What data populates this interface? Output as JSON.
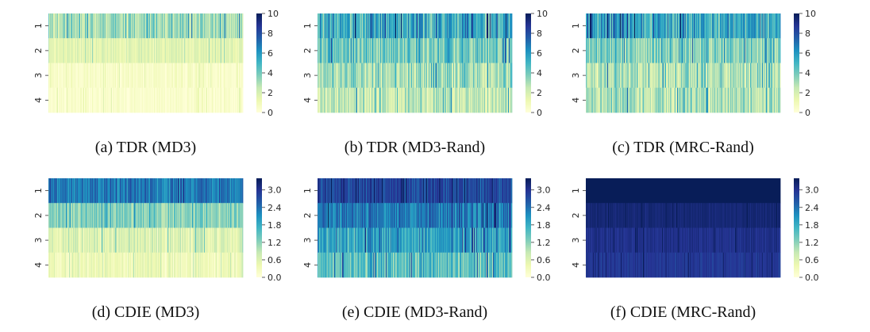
{
  "colormap": {
    "name": "YlGnBu",
    "stops": [
      "#ffffd9",
      "#edf8b1",
      "#c7e9b4",
      "#7fcdbb",
      "#41b6c4",
      "#1d91c0",
      "#225ea8",
      "#253494",
      "#081d58"
    ]
  },
  "row_labels": [
    "1",
    "2",
    "3",
    "4"
  ],
  "chart_data": [
    {
      "type": "heatmap",
      "caption": "(a) TDR (MD3)",
      "rows": [
        "1",
        "2",
        "3",
        "4"
      ],
      "vmin": 0,
      "vmax": 10,
      "colorbar_ticks": [
        "0",
        "2",
        "4",
        "6",
        "8",
        "10"
      ],
      "row_mean_values": [
        3.0,
        1.6,
        0.5,
        0.4
      ],
      "row_variation": [
        1.8,
        0.9,
        0.6,
        0.6
      ]
    },
    {
      "type": "heatmap",
      "caption": "(b) TDR (MD3-Rand)",
      "rows": [
        "1",
        "2",
        "3",
        "4"
      ],
      "vmin": 0,
      "vmax": 10,
      "colorbar_ticks": [
        "0",
        "2",
        "4",
        "6",
        "8",
        "10"
      ],
      "row_mean_values": [
        5.2,
        4.0,
        3.0,
        2.4
      ],
      "row_variation": [
        2.6,
        2.2,
        2.2,
        2.0
      ]
    },
    {
      "type": "heatmap",
      "caption": "(c) TDR (MRC-Rand)",
      "rows": [
        "1",
        "2",
        "3",
        "4"
      ],
      "vmin": 0,
      "vmax": 10,
      "colorbar_ticks": [
        "0",
        "2",
        "4",
        "6",
        "8",
        "10"
      ],
      "row_mean_values": [
        5.4,
        3.6,
        2.8,
        2.8
      ],
      "row_variation": [
        2.6,
        2.0,
        2.0,
        2.0
      ]
    },
    {
      "type": "heatmap",
      "caption": "(d) CDIE (MD3)",
      "rows": [
        "1",
        "2",
        "3",
        "4"
      ],
      "vmin": 0.0,
      "vmax": 3.4,
      "colorbar_ticks": [
        "0.0",
        "0.6",
        "1.2",
        "1.8",
        "2.4",
        "3.0"
      ],
      "row_mean_values": [
        2.3,
        1.2,
        0.6,
        0.35
      ],
      "row_variation": [
        0.5,
        0.5,
        0.45,
        0.35
      ]
    },
    {
      "type": "heatmap",
      "caption": "(e) CDIE (MD3-Rand)",
      "rows": [
        "1",
        "2",
        "3",
        "4"
      ],
      "vmin": 0.0,
      "vmax": 3.4,
      "colorbar_ticks": [
        "0.0",
        "0.6",
        "1.2",
        "1.8",
        "2.4",
        "3.0"
      ],
      "row_mean_values": [
        2.8,
        2.3,
        1.9,
        1.5
      ],
      "row_variation": [
        0.5,
        0.6,
        0.7,
        0.7
      ]
    },
    {
      "type": "heatmap",
      "caption": "(f) CDIE (MRC-Rand)",
      "rows": [
        "1",
        "2",
        "3",
        "4"
      ],
      "vmin": 0.0,
      "vmax": 3.4,
      "colorbar_ticks": [
        "0.0",
        "0.6",
        "1.2",
        "1.8",
        "2.4",
        "3.0"
      ],
      "row_mean_values": [
        3.4,
        3.2,
        3.05,
        2.95
      ],
      "row_variation": [
        0.0,
        0.12,
        0.18,
        0.2
      ]
    }
  ]
}
